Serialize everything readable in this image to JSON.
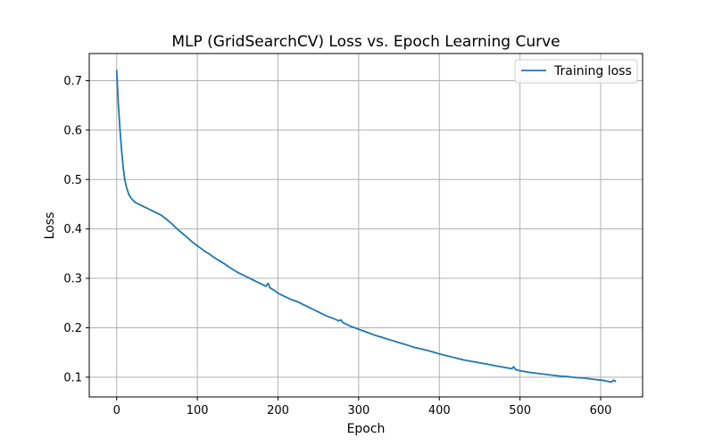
{
  "chart_data": {
    "type": "line",
    "title": "MLP (GridSearchCV) Loss vs. Epoch Learning Curve",
    "xlabel": "Epoch",
    "ylabel": "Loss",
    "xlim": [
      -34,
      652
    ],
    "ylim": [
      0.06,
      0.755
    ],
    "xticks": [
      0,
      100,
      200,
      300,
      400,
      500,
      600
    ],
    "yticks": [
      0.1,
      0.2,
      0.3,
      0.4,
      0.5,
      0.6,
      0.7
    ],
    "xtick_labels": [
      "0",
      "100",
      "200",
      "300",
      "400",
      "500",
      "600"
    ],
    "ytick_labels": [
      "0.1",
      "0.2",
      "0.3",
      "0.4",
      "0.5",
      "0.6",
      "0.7"
    ],
    "grid": true,
    "legend_position": "top-right",
    "series": [
      {
        "name": "Training loss",
        "color": "#1f77b4",
        "x": [
          0,
          2,
          4,
          6,
          8,
          10,
          12,
          15,
          18,
          22,
          26,
          30,
          35,
          40,
          45,
          50,
          55,
          60,
          65,
          70,
          75,
          80,
          85,
          90,
          95,
          100,
          105,
          110,
          115,
          120,
          125,
          130,
          135,
          140,
          145,
          150,
          155,
          160,
          165,
          170,
          175,
          180,
          185,
          188,
          190,
          195,
          200,
          205,
          210,
          215,
          220,
          225,
          230,
          235,
          240,
          245,
          250,
          255,
          260,
          265,
          270,
          275,
          278,
          280,
          285,
          290,
          295,
          300,
          310,
          320,
          330,
          340,
          350,
          360,
          370,
          380,
          390,
          400,
          410,
          420,
          430,
          440,
          450,
          460,
          470,
          480,
          490,
          492,
          495,
          500,
          510,
          520,
          530,
          540,
          550,
          560,
          570,
          580,
          590,
          600,
          605,
          610,
          613,
          616,
          619
        ],
        "y": [
          0.722,
          0.655,
          0.605,
          0.56,
          0.525,
          0.5,
          0.485,
          0.47,
          0.462,
          0.455,
          0.451,
          0.448,
          0.444,
          0.44,
          0.436,
          0.432,
          0.428,
          0.422,
          0.415,
          0.408,
          0.4,
          0.393,
          0.386,
          0.379,
          0.372,
          0.366,
          0.36,
          0.354,
          0.349,
          0.343,
          0.338,
          0.333,
          0.328,
          0.322,
          0.317,
          0.312,
          0.308,
          0.304,
          0.3,
          0.296,
          0.292,
          0.288,
          0.284,
          0.29,
          0.281,
          0.276,
          0.27,
          0.266,
          0.262,
          0.258,
          0.255,
          0.252,
          0.248,
          0.244,
          0.24,
          0.236,
          0.232,
          0.228,
          0.224,
          0.221,
          0.218,
          0.214,
          0.216,
          0.211,
          0.207,
          0.203,
          0.2,
          0.197,
          0.191,
          0.185,
          0.18,
          0.175,
          0.17,
          0.165,
          0.16,
          0.156,
          0.152,
          0.147,
          0.143,
          0.139,
          0.135,
          0.132,
          0.129,
          0.126,
          0.123,
          0.12,
          0.117,
          0.121,
          0.115,
          0.113,
          0.11,
          0.108,
          0.106,
          0.104,
          0.102,
          0.101,
          0.099,
          0.098,
          0.096,
          0.094,
          0.093,
          0.091,
          0.09,
          0.094,
          0.091
        ]
      }
    ]
  }
}
